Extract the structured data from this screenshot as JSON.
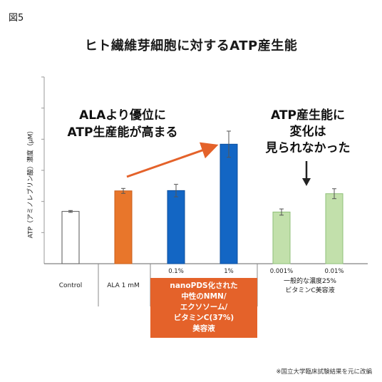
{
  "figure_label": "図5",
  "chart_data": {
    "type": "bar",
    "title": "ヒト繊維芽細胞に対するATP産生能",
    "ylabel": "ATP（アミノレブリン酸）濃度（μM）",
    "ylim": [
      0,
      6
    ],
    "categories": [
      "Control",
      "ALA 1 mM",
      "0.1%",
      "1%",
      "0.001%",
      "0.01%"
    ],
    "values": [
      1.68,
      2.34,
      2.35,
      3.84,
      1.66,
      2.25
    ],
    "errors": [
      0.03,
      0.08,
      0.2,
      0.42,
      0.1,
      0.16
    ],
    "bar_colors": [
      "#ffffff",
      "#e8762b",
      "#1366c4",
      "#1366c4",
      "#c2e0ab",
      "#c2e0ab"
    ],
    "bar_strokes": [
      "#555555",
      "#c85d1a",
      "#0d4f9e",
      "#0d4f9e",
      "#8fbf78",
      "#8fbf78"
    ],
    "group_labels": {
      "nanopds": [
        "nanoPDS化された",
        "中性のNMN/",
        "エクソソーム/",
        "ビタミンC(37%)",
        "美容液"
      ],
      "vitamin_c": [
        "一般的な濃度25%",
        "ビタミンC美容液"
      ]
    },
    "annotations": {
      "left": [
        "ALAより優位に",
        "ATP生産能が高まる"
      ],
      "right": [
        "ATP産生能に",
        "変化は",
        "見られなかった"
      ]
    },
    "accent_color": "#e4622a"
  },
  "footnote": "※国立大学臨床試験結果を元に改編"
}
